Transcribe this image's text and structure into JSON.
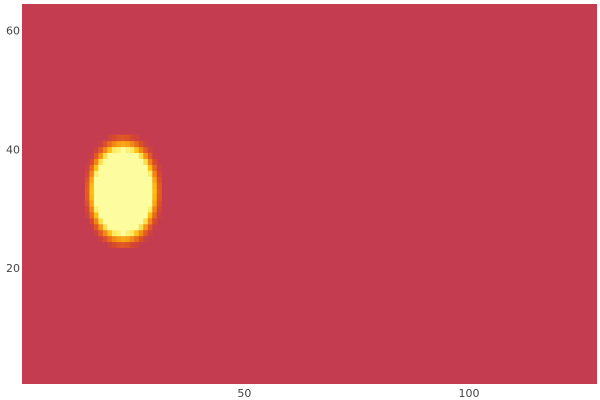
{
  "chart_data": {
    "type": "heatmap",
    "title": "",
    "xlabel": "",
    "ylabel": "",
    "xlim": [
      0.5,
      128.5
    ],
    "ylim": [
      0.5,
      64.5
    ],
    "grid": false,
    "legend": "none",
    "x_ticks": [
      {
        "value": 50,
        "label": "50"
      },
      {
        "value": 100,
        "label": "100"
      }
    ],
    "y_ticks": [
      {
        "value": 20,
        "label": "20"
      },
      {
        "value": 40,
        "label": "40"
      },
      {
        "value": 60,
        "label": "60"
      }
    ],
    "background_value": 0.0,
    "hotspot": {
      "center_x": 23,
      "center_y": 33,
      "core_radius_x": 6.5,
      "core_radius_y": 7,
      "halo_radius_x": 9,
      "halo_radius_y": 10,
      "peak_value": 1.0
    },
    "colormap": [
      {
        "stop": 0.0,
        "color": "#c43c50"
      },
      {
        "stop": 0.25,
        "color": "#d84a2a"
      },
      {
        "stop": 0.5,
        "color": "#f07818"
      },
      {
        "stop": 0.72,
        "color": "#fdbe10"
      },
      {
        "stop": 0.88,
        "color": "#fdf070"
      },
      {
        "stop": 1.0,
        "color": "#fdfda0"
      }
    ]
  }
}
